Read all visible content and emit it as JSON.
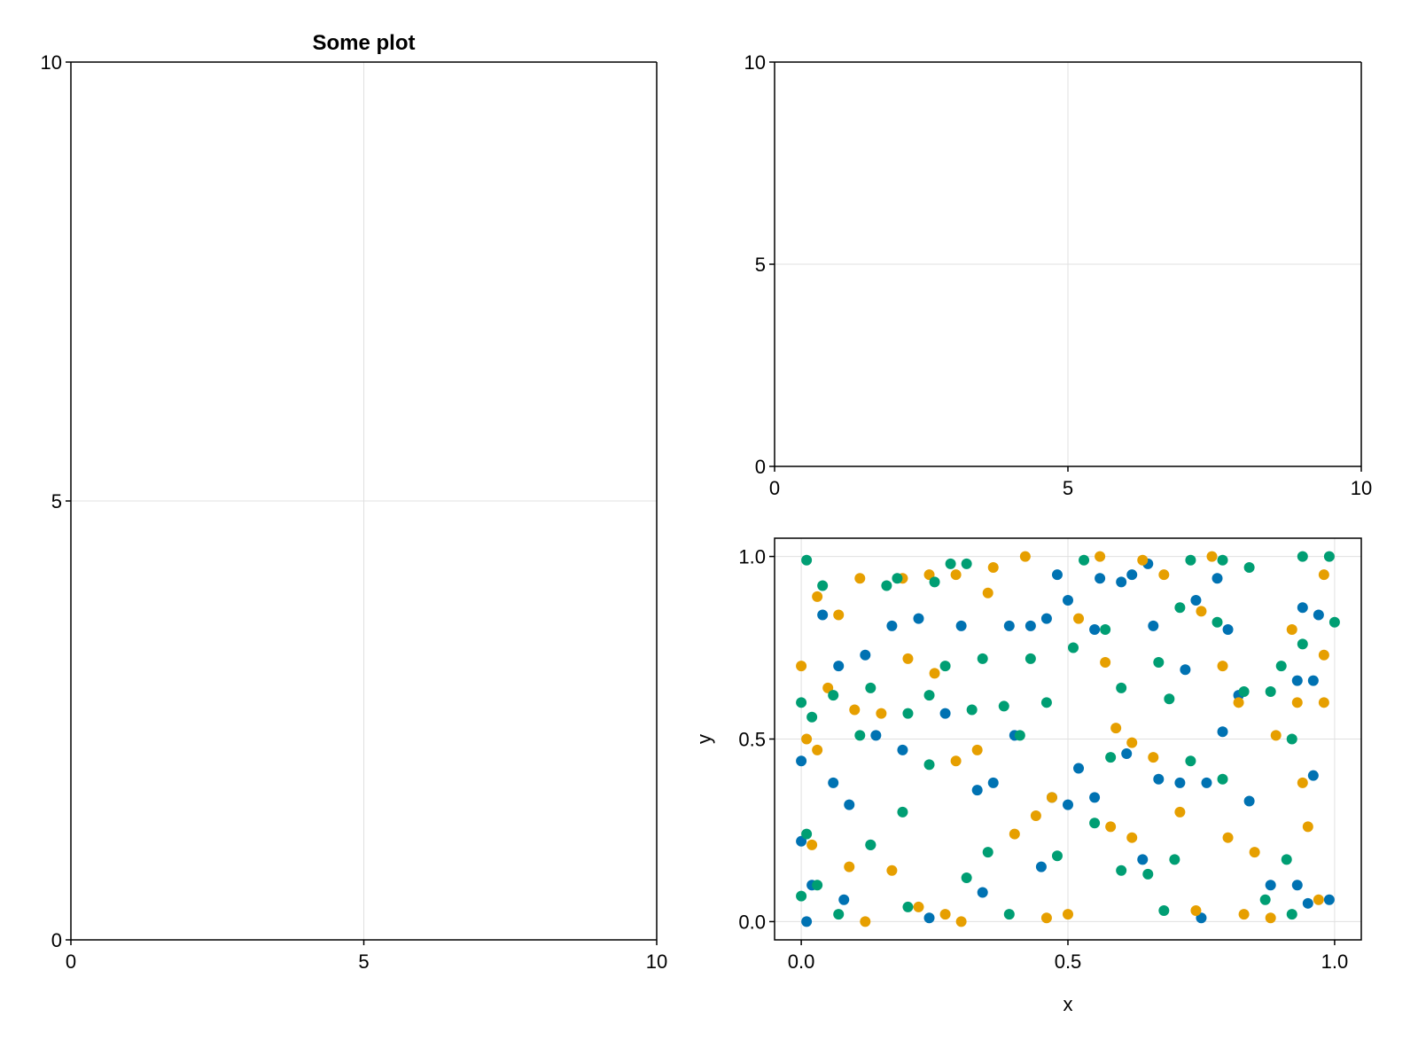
{
  "chart_data": [
    {
      "type": "scatter",
      "title": "Some plot",
      "xlabel": "",
      "ylabel": "",
      "xlim": [
        0,
        10
      ],
      "ylim": [
        0,
        10
      ],
      "xticks": [
        "0",
        "5",
        "10"
      ],
      "yticks": [
        "0",
        "5",
        "10"
      ],
      "xtick_values": [
        0,
        5,
        10
      ],
      "ytick_values": [
        0,
        5,
        10
      ],
      "grid": true,
      "series": []
    },
    {
      "type": "scatter",
      "title": "",
      "xlabel": "",
      "ylabel": "",
      "xlim": [
        0,
        10
      ],
      "ylim": [
        0,
        10
      ],
      "xticks": [
        "0",
        "5",
        "10"
      ],
      "yticks": [
        "0",
        "5",
        "10"
      ],
      "xtick_values": [
        0,
        5,
        10
      ],
      "ytick_values": [
        0,
        5,
        10
      ],
      "grid": true,
      "series": []
    },
    {
      "type": "scatter",
      "title": "",
      "xlabel": "x",
      "ylabel": "y",
      "xlim": [
        -0.05,
        1.05
      ],
      "ylim": [
        -0.05,
        1.05
      ],
      "xticks": [
        "0.0",
        "0.5",
        "1.0"
      ],
      "yticks": [
        "0.0",
        "0.5",
        "1.0"
      ],
      "xtick_values": [
        0,
        0.5,
        1
      ],
      "ytick_values": [
        0,
        0.5,
        1
      ],
      "grid": true,
      "series": [
        {
          "color": "#0072B2",
          "points": [
            [
              0.0,
              0.44
            ],
            [
              0.01,
              0.0
            ],
            [
              0.04,
              0.84
            ],
            [
              0.07,
              0.7
            ],
            [
              0.22,
              0.83
            ],
            [
              0.43,
              0.81
            ],
            [
              0.46,
              0.83
            ],
            [
              0.48,
              0.95
            ],
            [
              0.5,
              0.88
            ],
            [
              0.56,
              0.94
            ],
            [
              0.6,
              0.93
            ],
            [
              0.62,
              0.95
            ],
            [
              0.65,
              0.98
            ],
            [
              0.74,
              0.88
            ],
            [
              0.78,
              0.94
            ],
            [
              0.94,
              0.86
            ],
            [
              0.97,
              0.84
            ],
            [
              0.99,
              0.06
            ],
            [
              0.95,
              0.05
            ],
            [
              0.93,
              0.1
            ],
            [
              0.75,
              0.01
            ],
            [
              0.24,
              0.01
            ],
            [
              0.06,
              0.38
            ],
            [
              0.09,
              0.32
            ],
            [
              0.14,
              0.51
            ],
            [
              0.19,
              0.47
            ],
            [
              0.27,
              0.57
            ],
            [
              0.33,
              0.36
            ],
            [
              0.36,
              0.38
            ],
            [
              0.4,
              0.51
            ],
            [
              0.47,
              0.34
            ],
            [
              0.5,
              0.32
            ],
            [
              0.52,
              0.42
            ],
            [
              0.55,
              0.34
            ],
            [
              0.61,
              0.46
            ],
            [
              0.67,
              0.39
            ],
            [
              0.71,
              0.38
            ],
            [
              0.76,
              0.38
            ],
            [
              0.82,
              0.62
            ],
            [
              0.84,
              0.33
            ],
            [
              0.88,
              0.1
            ],
            [
              0.96,
              0.4
            ],
            [
              0.96,
              0.66
            ],
            [
              0.93,
              0.66
            ],
            [
              0.79,
              0.52
            ],
            [
              0.72,
              0.69
            ],
            [
              0.64,
              0.17
            ],
            [
              0.45,
              0.15
            ],
            [
              0.34,
              0.08
            ],
            [
              0.13,
              0.21
            ],
            [
              0.08,
              0.06
            ],
            [
              0.02,
              0.1
            ],
            [
              0.0,
              0.22
            ],
            [
              0.12,
              0.73
            ],
            [
              0.17,
              0.81
            ],
            [
              0.3,
              0.81
            ],
            [
              0.39,
              0.81
            ],
            [
              0.55,
              0.8
            ],
            [
              0.66,
              0.81
            ],
            [
              0.8,
              0.8
            ]
          ]
        },
        {
          "color": "#E69F00",
          "points": [
            [
              0.0,
              0.7
            ],
            [
              0.01,
              0.5
            ],
            [
              0.03,
              0.89
            ],
            [
              0.07,
              0.84
            ],
            [
              0.11,
              0.94
            ],
            [
              0.19,
              0.94
            ],
            [
              0.24,
              0.95
            ],
            [
              0.29,
              0.95
            ],
            [
              0.36,
              0.97
            ],
            [
              0.42,
              1.0
            ],
            [
              0.56,
              1.0
            ],
            [
              0.64,
              0.99
            ],
            [
              0.77,
              1.0
            ],
            [
              0.98,
              0.95
            ],
            [
              0.98,
              0.73
            ],
            [
              0.98,
              0.6
            ],
            [
              0.93,
              0.6
            ],
            [
              0.95,
              0.26
            ],
            [
              0.97,
              0.06
            ],
            [
              0.88,
              0.01
            ],
            [
              0.83,
              0.02
            ],
            [
              0.74,
              0.03
            ],
            [
              0.46,
              0.01
            ],
            [
              0.5,
              0.02
            ],
            [
              0.3,
              0.0
            ],
            [
              0.12,
              0.0
            ],
            [
              0.17,
              0.14
            ],
            [
              0.09,
              0.15
            ],
            [
              0.03,
              0.47
            ],
            [
              0.05,
              0.64
            ],
            [
              0.1,
              0.58
            ],
            [
              0.2,
              0.72
            ],
            [
              0.25,
              0.68
            ],
            [
              0.29,
              0.44
            ],
            [
              0.33,
              0.47
            ],
            [
              0.4,
              0.24
            ],
            [
              0.44,
              0.29
            ],
            [
              0.52,
              0.83
            ],
            [
              0.57,
              0.71
            ],
            [
              0.59,
              0.53
            ],
            [
              0.62,
              0.49
            ],
            [
              0.66,
              0.45
            ],
            [
              0.71,
              0.3
            ],
            [
              0.75,
              0.85
            ],
            [
              0.79,
              0.7
            ],
            [
              0.82,
              0.6
            ],
            [
              0.85,
              0.19
            ],
            [
              0.89,
              0.51
            ],
            [
              0.92,
              0.8
            ],
            [
              0.94,
              0.38
            ],
            [
              0.58,
              0.26
            ],
            [
              0.62,
              0.23
            ],
            [
              0.35,
              0.9
            ],
            [
              0.68,
              0.95
            ],
            [
              0.47,
              0.34
            ],
            [
              0.22,
              0.04
            ],
            [
              0.27,
              0.02
            ],
            [
              0.15,
              0.57
            ],
            [
              0.02,
              0.21
            ],
            [
              0.8,
              0.23
            ]
          ]
        },
        {
          "color": "#009E73",
          "points": [
            [
              0.01,
              0.99
            ],
            [
              0.04,
              0.92
            ],
            [
              0.16,
              0.92
            ],
            [
              0.28,
              0.98
            ],
            [
              0.31,
              0.98
            ],
            [
              0.53,
              0.99
            ],
            [
              0.73,
              0.99
            ],
            [
              0.79,
              0.99
            ],
            [
              0.84,
              0.97
            ],
            [
              0.94,
              1.0
            ],
            [
              0.99,
              1.0
            ],
            [
              1.0,
              0.82
            ],
            [
              0.94,
              0.76
            ],
            [
              0.9,
              0.7
            ],
            [
              0.92,
              0.5
            ],
            [
              0.91,
              0.17
            ],
            [
              0.92,
              0.02
            ],
            [
              0.87,
              0.06
            ],
            [
              0.79,
              0.39
            ],
            [
              0.73,
              0.44
            ],
            [
              0.7,
              0.17
            ],
            [
              0.68,
              0.03
            ],
            [
              0.6,
              0.14
            ],
            [
              0.55,
              0.27
            ],
            [
              0.48,
              0.18
            ],
            [
              0.39,
              0.02
            ],
            [
              0.31,
              0.12
            ],
            [
              0.24,
              0.43
            ],
            [
              0.19,
              0.3
            ],
            [
              0.2,
              0.04
            ],
            [
              0.13,
              0.21
            ],
            [
              0.07,
              0.02
            ],
            [
              0.03,
              0.1
            ],
            [
              0.0,
              0.07
            ],
            [
              0.01,
              0.24
            ],
            [
              0.0,
              0.6
            ],
            [
              0.02,
              0.56
            ],
            [
              0.06,
              0.62
            ],
            [
              0.11,
              0.51
            ],
            [
              0.13,
              0.64
            ],
            [
              0.2,
              0.57
            ],
            [
              0.24,
              0.62
            ],
            [
              0.27,
              0.7
            ],
            [
              0.32,
              0.58
            ],
            [
              0.34,
              0.72
            ],
            [
              0.38,
              0.59
            ],
            [
              0.41,
              0.51
            ],
            [
              0.46,
              0.6
            ],
            [
              0.51,
              0.75
            ],
            [
              0.57,
              0.8
            ],
            [
              0.6,
              0.64
            ],
            [
              0.67,
              0.71
            ],
            [
              0.69,
              0.61
            ],
            [
              0.71,
              0.86
            ],
            [
              0.78,
              0.82
            ],
            [
              0.83,
              0.63
            ],
            [
              0.88,
              0.63
            ],
            [
              0.25,
              0.93
            ],
            [
              0.18,
              0.94
            ],
            [
              0.58,
              0.45
            ],
            [
              0.43,
              0.72
            ],
            [
              0.65,
              0.13
            ],
            [
              0.35,
              0.19
            ]
          ]
        }
      ]
    }
  ]
}
